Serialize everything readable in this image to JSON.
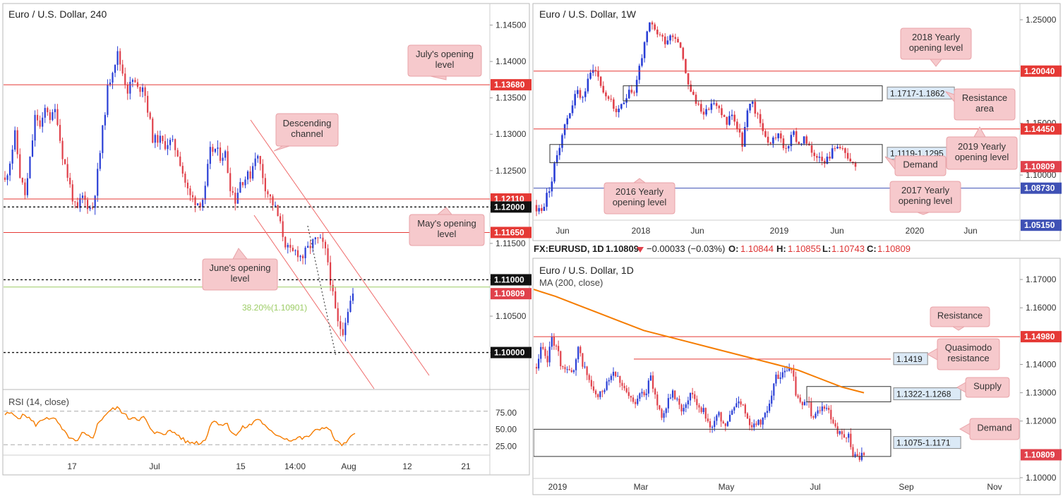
{
  "chart_data": [
    {
      "id": "h4",
      "type": "candlestick",
      "title": "Euro / U.S. Dollar, 240",
      "ylim": [
        1.0955,
        1.1468
      ],
      "y_ticks": [
        1.145,
        1.14,
        1.135,
        1.13,
        1.125,
        1.12,
        1.115,
        1.11,
        1.105,
        1.1
      ],
      "x_ticks": [
        "17",
        "Jul",
        "15",
        "14:00",
        "Aug",
        "12",
        "21"
      ],
      "candles_close_path": [
        1.1235,
        1.1265,
        1.13,
        1.124,
        1.1215,
        1.127,
        1.133,
        1.1305,
        1.134,
        1.132,
        1.1335,
        1.128,
        1.125,
        1.122,
        1.119,
        1.1215,
        1.1205,
        1.1195,
        1.124,
        1.13,
        1.136,
        1.139,
        1.141,
        1.1385,
        1.136,
        1.1375,
        1.136,
        1.137,
        1.133,
        1.129,
        1.1295,
        1.1285,
        1.129,
        1.1285,
        1.127,
        1.124,
        1.1215,
        1.121,
        1.1205,
        1.1215,
        1.1275,
        1.128,
        1.127,
        1.1275,
        1.123,
        1.121,
        1.1235,
        1.124,
        1.1245,
        1.1275,
        1.1255,
        1.1225,
        1.121,
        1.1195,
        1.117,
        1.1145,
        1.1135,
        1.114,
        1.113,
        1.114,
        1.115,
        1.1155,
        1.115,
        1.113,
        1.108,
        1.104,
        1.103,
        1.106,
        1.1081
      ],
      "lines": [
        {
          "value": 1.1368,
          "label": "1.13680",
          "style": "red"
        },
        {
          "value": 1.1211,
          "label": "1.12110",
          "style": "red"
        },
        {
          "value": 1.12,
          "label": "1.12000",
          "style": "dotted"
        },
        {
          "value": 1.1165,
          "label": "1.11650",
          "style": "red"
        },
        {
          "value": 1.11,
          "label": "1.11000",
          "style": "dotted"
        },
        {
          "value": 1.1,
          "label": "1.10000",
          "style": "dotted"
        },
        {
          "value": 1.109,
          "label": "",
          "style": "green"
        }
      ],
      "current_price": "1.10809",
      "fib_label": "38.20%(1.10901)",
      "callouts": [
        "July's opening level",
        "Descending channel",
        "May's opening level",
        "June's opening level"
      ],
      "rsi": {
        "label": "RSI (14, close)",
        "ticks": [
          "75.00",
          "50.00",
          "25.00"
        ],
        "tick_values": [
          75,
          50,
          25
        ],
        "values": [
          70,
          72,
          68,
          66,
          70,
          62,
          55,
          60,
          67,
          63,
          62,
          48,
          40,
          33,
          28,
          42,
          38,
          35,
          55,
          66,
          74,
          78,
          80,
          72,
          64,
          67,
          63,
          66,
          52,
          40,
          44,
          42,
          45,
          43,
          37,
          30,
          28,
          29,
          27,
          34,
          58,
          60,
          55,
          57,
          45,
          38,
          50,
          52,
          56,
          65,
          58,
          48,
          42,
          40,
          36,
          33,
          32,
          36,
          34,
          38,
          44,
          48,
          52,
          48,
          34,
          26,
          25,
          34,
          42
        ]
      }
    },
    {
      "id": "w1",
      "type": "candlestick",
      "title": "Euro / U.S. Dollar, 1W",
      "ylim": [
        1.0455,
        1.2575
      ],
      "y_ticks": [
        1.25,
        1.15,
        1.1
      ],
      "y_tick_labels": [
        "1.25000",
        "1.15000",
        "1.10000"
      ],
      "x_ticks": [
        "Jun",
        "2018",
        "Jun",
        "2019",
        "Jun",
        "2020",
        "Jun"
      ],
      "candles_close_path": [
        1.068,
        1.065,
        1.08,
        1.095,
        1.12,
        1.14,
        1.155,
        1.17,
        1.18,
        1.175,
        1.19,
        1.205,
        1.195,
        1.18,
        1.175,
        1.165,
        1.16,
        1.17,
        1.185,
        1.18,
        1.205,
        1.225,
        1.245,
        1.24,
        1.235,
        1.23,
        1.235,
        1.235,
        1.225,
        1.2,
        1.18,
        1.17,
        1.165,
        1.16,
        1.17,
        1.165,
        1.16,
        1.15,
        1.16,
        1.145,
        1.13,
        1.16,
        1.17,
        1.155,
        1.145,
        1.13,
        1.135,
        1.14,
        1.125,
        1.13,
        1.14,
        1.13,
        1.135,
        1.125,
        1.12,
        1.12,
        1.115,
        1.12,
        1.125,
        1.13,
        1.12,
        1.11,
        1.108
      ],
      "lines": [
        {
          "value": 1.2004,
          "label": "1.20040",
          "style": "red"
        },
        {
          "value": 1.1445,
          "label": "1.14450",
          "style": "red"
        },
        {
          "value": 1.1081,
          "label": "1.10809",
          "style": "price"
        },
        {
          "value": 1.0873,
          "label": "1.08730",
          "style": "blue"
        },
        {
          "value": 1.0515,
          "label": "1.05150",
          "style": "blue"
        }
      ],
      "zones": [
        "1.1717-1.1862",
        "1.1119-1.1295"
      ],
      "callouts": [
        "2018 Yearly opening level",
        "Resistance area",
        "2019 Yearly opening level",
        "Demand",
        "2016 Yearly opening level",
        "2017 Yearly opening level"
      ]
    },
    {
      "id": "d1",
      "type": "candlestick",
      "title": "Euro / U.S. Dollar, 1D",
      "indicator": "MA (200, close)",
      "ylim": [
        1.0975,
        1.1745
      ],
      "y_ticks": [
        1.17,
        1.16,
        1.14,
        1.13,
        1.12,
        1.1
      ],
      "y_tick_labels": [
        "1.17000",
        "1.16000",
        "1.14000",
        "1.13000",
        "1.12000",
        "1.10000"
      ],
      "x_ticks": [
        "2019",
        "Mar",
        "May",
        "Jul",
        "Sep",
        "Nov"
      ],
      "candles_close_path": [
        1.138,
        1.146,
        1.14,
        1.15,
        1.145,
        1.138,
        1.14,
        1.135,
        1.145,
        1.14,
        1.135,
        1.13,
        1.128,
        1.132,
        1.136,
        1.138,
        1.135,
        1.13,
        1.128,
        1.125,
        1.132,
        1.13,
        1.135,
        1.128,
        1.122,
        1.125,
        1.13,
        1.128,
        1.124,
        1.128,
        1.13,
        1.126,
        1.124,
        1.12,
        1.118,
        1.122,
        1.118,
        1.12,
        1.125,
        1.128,
        1.124,
        1.12,
        1.118,
        1.12,
        1.122,
        1.128,
        1.135,
        1.135,
        1.138,
        1.14,
        1.128,
        1.125,
        1.128,
        1.122,
        1.122,
        1.126,
        1.124,
        1.12,
        1.116,
        1.114,
        1.115,
        1.108,
        1.107,
        1.108
      ],
      "ma_path": [
        1.1665,
        1.164,
        1.161,
        1.158,
        1.155,
        1.152,
        1.15,
        1.148,
        1.146,
        1.144,
        1.142,
        1.14,
        1.138,
        1.135,
        1.132,
        1.13
      ],
      "lines": [
        {
          "value": 1.1498,
          "label": "1.14980",
          "style": "red"
        },
        {
          "value": 1.1081,
          "label": "1.10809",
          "style": "price"
        }
      ],
      "zones": [
        "1.1419",
        "1.1322-1.1268",
        "1.1075-1.1171"
      ],
      "callouts": [
        "Resistance",
        "Quasimodo resistance",
        "Supply",
        "Demand"
      ]
    }
  ],
  "symbol_bar": {
    "symbol": "FX:EURUSD, 1D",
    "last": "1.10809",
    "change": "−0.00033 (−0.03%)",
    "o_label": "O:",
    "o": "1.10844",
    "h_label": "H:",
    "h": "1.10855",
    "l_label": "L:",
    "l": "1.10743",
    "c_label": "C:",
    "c": "1.10809"
  },
  "colors": {
    "up": "#2a3fd6",
    "down": "#e0414b",
    "red_line": "#e53935",
    "blue_line": "#3f51b5",
    "fib": "#9ccc65",
    "rsi": "#f57c00",
    "ma": "#f57c00",
    "callout_fill": "#f6c9cc"
  }
}
